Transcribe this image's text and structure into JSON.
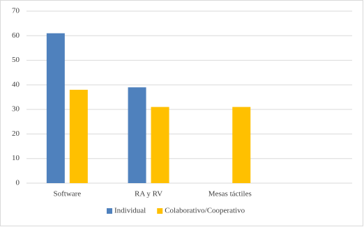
{
  "chart_data": {
    "type": "bar",
    "categories": [
      "Software",
      "RA y RV",
      "Mesas táctiles"
    ],
    "series": [
      {
        "name": "Individual",
        "color": "#4f81bd",
        "values": [
          61,
          39,
          null
        ]
      },
      {
        "name": "Colaborativo/Cooperativo",
        "color": "#ffc000",
        "values": [
          38,
          31,
          31
        ]
      }
    ],
    "ylim": [
      0,
      70
    ],
    "yticks": [
      0,
      10,
      20,
      30,
      40,
      50,
      60,
      70
    ],
    "grid": true,
    "legend": "bottom"
  }
}
